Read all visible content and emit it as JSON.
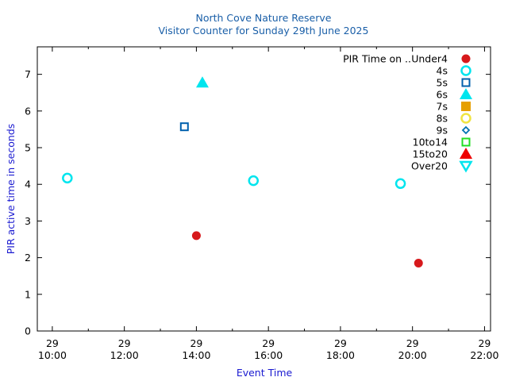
{
  "chart_data": {
    "type": "scatter",
    "title": "North Cove Nature Reserve",
    "subtitle": "Visitor Counter for Sunday 29th June 2025",
    "xlabel": "Event Time",
    "ylabel": "PIR active time in seconds",
    "xlim": [
      "29 09:35",
      "29 22:10"
    ],
    "ylim": [
      0,
      7.75
    ],
    "x_ticks": [
      {
        "day": "29",
        "time": "10:00",
        "x": "29 10:00"
      },
      {
        "day": "29",
        "time": "12:00",
        "x": "29 12:00"
      },
      {
        "day": "29",
        "time": "14:00",
        "x": "29 14:00"
      },
      {
        "day": "29",
        "time": "16:00",
        "x": "29 16:00"
      },
      {
        "day": "29",
        "time": "18:00",
        "x": "29 18:00"
      },
      {
        "day": "29",
        "time": "20:00",
        "x": "29 20:00"
      },
      {
        "day": "29",
        "time": "22:00",
        "x": "29 22:00"
      }
    ],
    "y_ticks": [
      "0",
      "1",
      "2",
      "3",
      "4",
      "5",
      "6",
      "7"
    ],
    "legend_title": "PIR Time on ..",
    "legend_position": "top-right",
    "grid": false,
    "series": [
      {
        "name": "Under4",
        "marker": "circle-filled",
        "color": "#d7191c",
        "points": [
          {
            "x": "29 14:00",
            "y": 2.6
          },
          {
            "x": "29 20:10",
            "y": 1.85
          }
        ]
      },
      {
        "name": "4s",
        "marker": "circle-open",
        "color": "#00e5ee",
        "points": [
          {
            "x": "29 10:25",
            "y": 4.17
          },
          {
            "x": "29 15:35",
            "y": 4.1
          },
          {
            "x": "29 19:40",
            "y": 4.02
          }
        ]
      },
      {
        "name": "5s",
        "marker": "square-open",
        "color": "#0060ad",
        "points": [
          {
            "x": "29 13:40",
            "y": 5.57
          }
        ]
      },
      {
        "name": "6s",
        "marker": "triangle-filled",
        "color": "#00e5ee",
        "points": [
          {
            "x": "29 14:10",
            "y": 6.77
          }
        ]
      },
      {
        "name": "7s",
        "marker": "square-filled",
        "color": "#e69f00",
        "points": []
      },
      {
        "name": "8s",
        "marker": "circle-open",
        "color": "#f0e442",
        "points": []
      },
      {
        "name": "9s",
        "marker": "diamond-open",
        "color": "#0072b2",
        "points": []
      },
      {
        "name": "10to14",
        "marker": "square-open",
        "color": "#22dd22",
        "points": []
      },
      {
        "name": "15to20",
        "marker": "triangle-filled",
        "color": "#ee0000",
        "points": []
      },
      {
        "name": "Over20",
        "marker": "triangle-down-open",
        "color": "#00e5ee",
        "points": []
      }
    ]
  }
}
